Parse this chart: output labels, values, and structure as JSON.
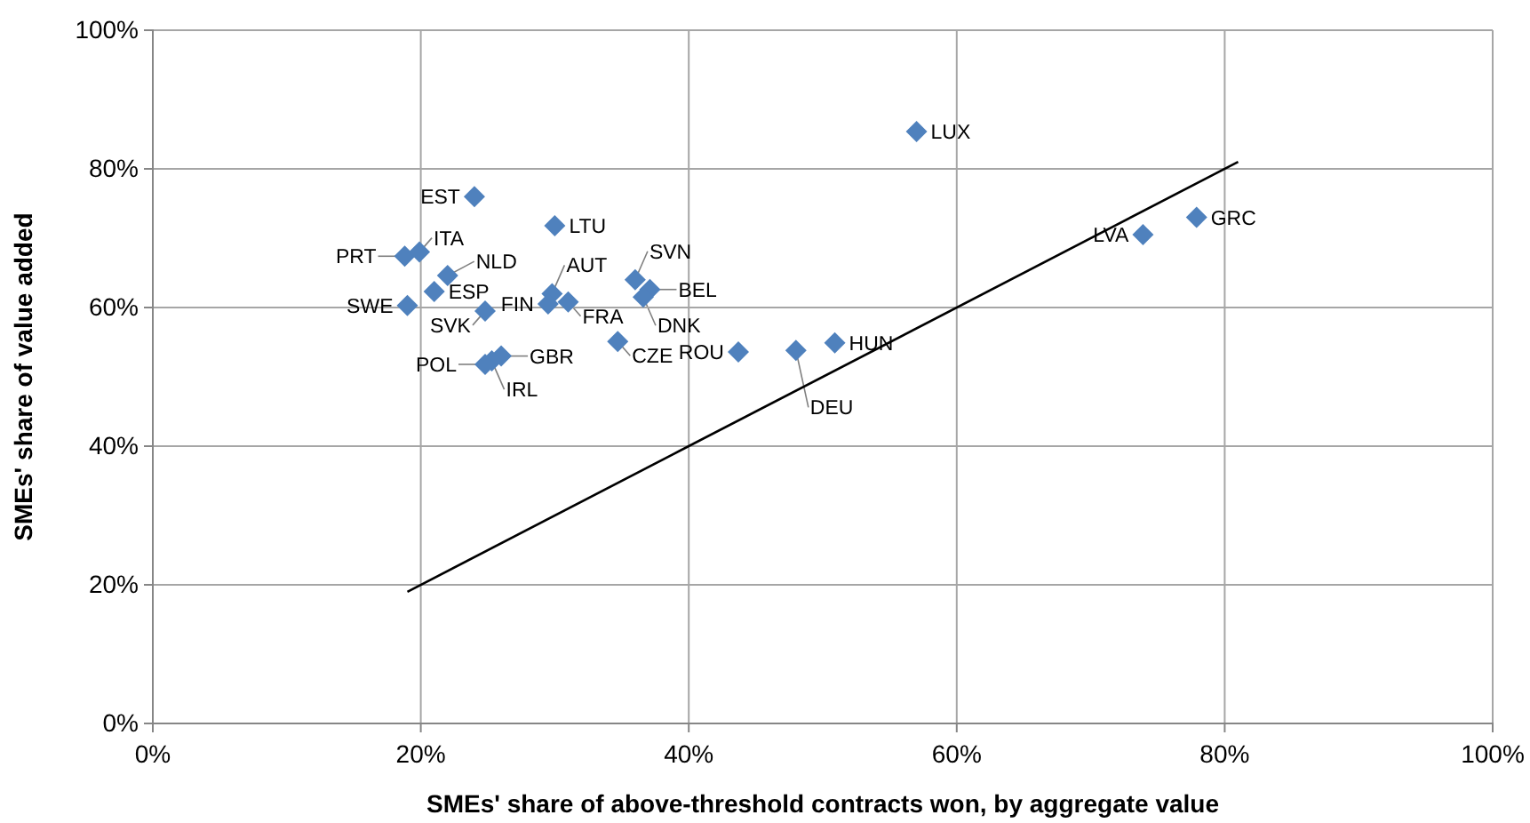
{
  "chart_data": {
    "type": "scatter",
    "xlabel": "SMEs' share of above-threshold contracts won, by aggregate value",
    "ylabel": "SMEs' share of value added",
    "xlim": [
      0,
      100
    ],
    "ylim": [
      0,
      100
    ],
    "xticks": [
      {
        "value": 0,
        "label": "0%"
      },
      {
        "value": 20,
        "label": "20%"
      },
      {
        "value": 40,
        "label": "40%"
      },
      {
        "value": 60,
        "label": "60%"
      },
      {
        "value": 80,
        "label": "80%"
      },
      {
        "value": 100,
        "label": "100%"
      }
    ],
    "yticks": [
      {
        "value": 0,
        "label": "0%"
      },
      {
        "value": 20,
        "label": "20%"
      },
      {
        "value": 40,
        "label": "40%"
      },
      {
        "value": 60,
        "label": "60%"
      },
      {
        "value": 80,
        "label": "80%"
      },
      {
        "value": 100,
        "label": "100%"
      }
    ],
    "grid": true,
    "legend": false,
    "marker": "diamond",
    "series": [
      {
        "name": "LUX",
        "color": "#4f81bd",
        "x": [
          57
        ],
        "values": [
          85.4
        ]
      },
      {
        "name": "EST",
        "color": "#4f81bd",
        "x": [
          24
        ],
        "values": [
          76
        ]
      },
      {
        "name": "LTU",
        "color": "#4f81bd",
        "x": [
          30
        ],
        "values": [
          71.8
        ]
      },
      {
        "name": "PRT",
        "color": "#4f81bd",
        "x": [
          18.8
        ],
        "values": [
          67.4
        ]
      },
      {
        "name": "ITA",
        "color": "#4f81bd",
        "x": [
          19.9
        ],
        "values": [
          68
        ]
      },
      {
        "name": "NLD",
        "color": "#4f81bd",
        "x": [
          22
        ],
        "values": [
          64.6
        ]
      },
      {
        "name": "ESP",
        "color": "#4f81bd",
        "x": [
          21
        ],
        "values": [
          62.3
        ]
      },
      {
        "name": "SWE",
        "color": "#4f81bd",
        "x": [
          19
        ],
        "values": [
          60.3
        ]
      },
      {
        "name": "SVK",
        "color": "#4f81bd",
        "x": [
          24.8
        ],
        "values": [
          59.5
        ]
      },
      {
        "name": "AUT",
        "color": "#4f81bd",
        "x": [
          29.8
        ],
        "values": [
          62
        ]
      },
      {
        "name": "FIN",
        "color": "#4f81bd",
        "x": [
          29.5
        ],
        "values": [
          60.5
        ]
      },
      {
        "name": "FRA",
        "color": "#4f81bd",
        "x": [
          31
        ],
        "values": [
          60.8
        ]
      },
      {
        "name": "SVN",
        "color": "#4f81bd",
        "x": [
          36
        ],
        "values": [
          64
        ]
      },
      {
        "name": "BEL",
        "color": "#4f81bd",
        "x": [
          37.1
        ],
        "values": [
          62.6
        ]
      },
      {
        "name": "DNK",
        "color": "#4f81bd",
        "x": [
          36.6
        ],
        "values": [
          61.5
        ]
      },
      {
        "name": "CZE",
        "color": "#4f81bd",
        "x": [
          34.7
        ],
        "values": [
          55.1
        ]
      },
      {
        "name": "GBR",
        "color": "#4f81bd",
        "x": [
          26
        ],
        "values": [
          53
        ]
      },
      {
        "name": "IRL",
        "color": "#4f81bd",
        "x": [
          25.3
        ],
        "values": [
          52.3
        ]
      },
      {
        "name": "POL",
        "color": "#4f81bd",
        "x": [
          24.8
        ],
        "values": [
          51.8
        ]
      },
      {
        "name": "ROU",
        "color": "#4f81bd",
        "x": [
          43.7
        ],
        "values": [
          53.6
        ]
      },
      {
        "name": "DEU",
        "color": "#4f81bd",
        "x": [
          48
        ],
        "values": [
          53.8
        ]
      },
      {
        "name": "HUN",
        "color": "#4f81bd",
        "x": [
          50.9
        ],
        "values": [
          54.9
        ]
      },
      {
        "name": "LVA",
        "color": "#4f81bd",
        "x": [
          73.9
        ],
        "values": [
          70.5
        ]
      },
      {
        "name": "GRC",
        "color": "#4f81bd",
        "x": [
          77.9
        ],
        "values": [
          73
        ]
      },
      {
        "type": "line",
        "color": "#000000",
        "marker": "none",
        "x": [
          19,
          81
        ],
        "values": [
          19,
          81
        ]
      }
    ]
  }
}
